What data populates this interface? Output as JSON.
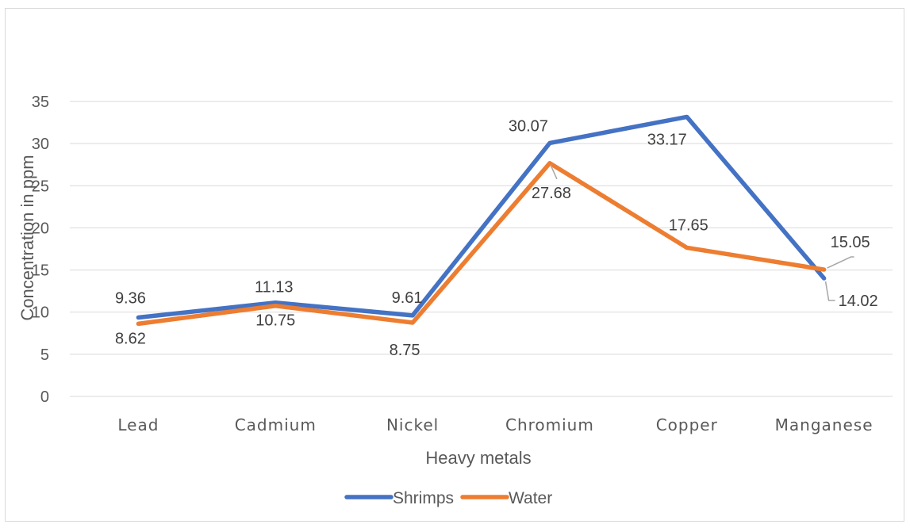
{
  "chart_data": {
    "type": "line",
    "title": "",
    "xlabel": "Heavy metals",
    "ylabel": "Concentration in ppm",
    "categories": [
      "Lead",
      "Cadmium",
      "Nickel",
      "Chromium",
      "Copper",
      "Manganese"
    ],
    "ylim": [
      0,
      35
    ],
    "yticks": [
      0,
      5,
      10,
      15,
      20,
      25,
      30,
      35
    ],
    "grid": true,
    "legend_position": "bottom",
    "series": [
      {
        "name": "Shrimps",
        "color": "#4472C4",
        "values": [
          9.36,
          11.13,
          9.61,
          30.07,
          33.17,
          14.02
        ],
        "labels": [
          "9.36",
          "11.13",
          "9.61",
          "30.07",
          "33.17",
          "14.02"
        ]
      },
      {
        "name": "Water",
        "color": "#ED7D31",
        "values": [
          8.62,
          10.75,
          8.75,
          27.68,
          17.65,
          15.05
        ],
        "labels": [
          "8.62",
          "10.75",
          "8.75",
          "27.68",
          "17.65",
          "15.05"
        ]
      }
    ]
  }
}
